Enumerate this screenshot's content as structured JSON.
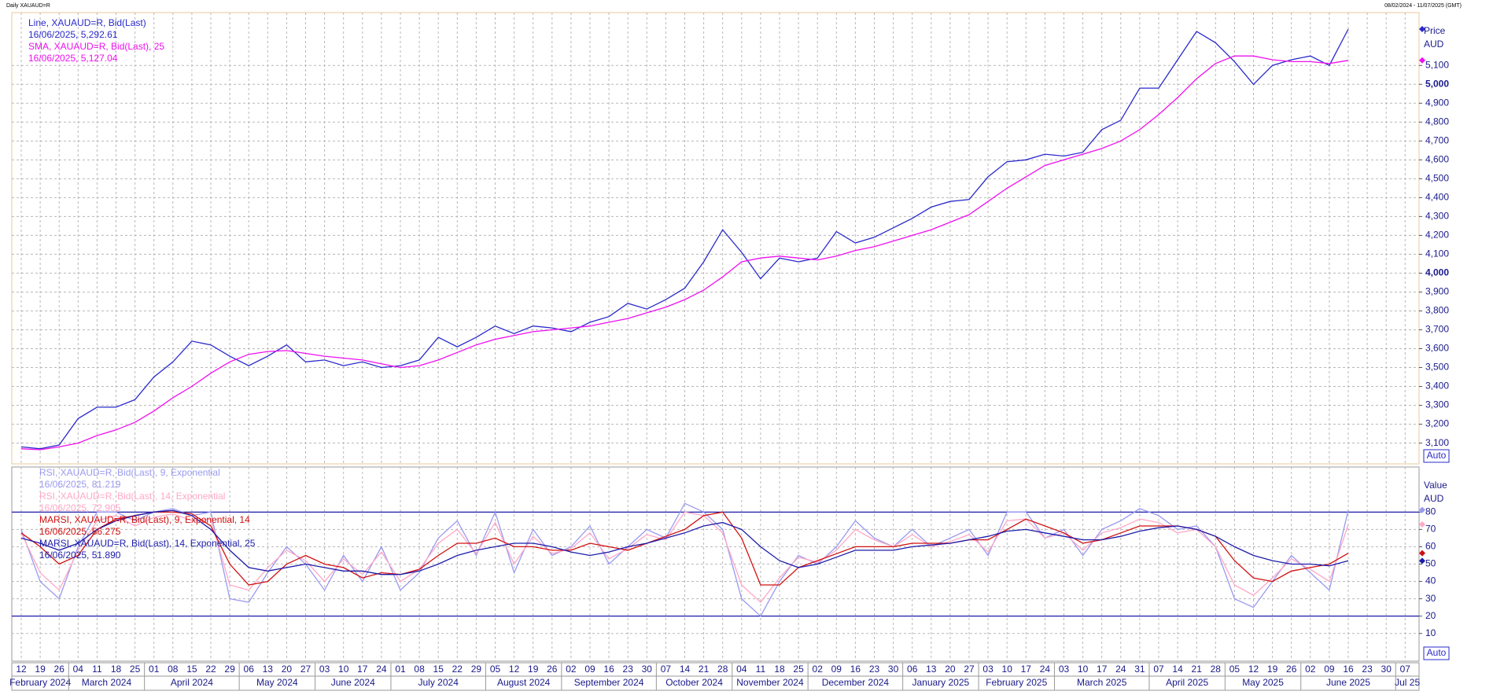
{
  "header": {
    "title": "Daily XAUAUD=R",
    "range": "08/02/2024 - 11/07/2025 (GMT)"
  },
  "chart_data": [
    {
      "type": "line",
      "ylabel": "Price",
      "yunit": "AUD",
      "button": "Auto",
      "grid": true,
      "ylim": [
        2990,
        5380
      ],
      "yticks": [
        {
          "value": 3100,
          "label": "3,100"
        },
        {
          "value": 3200,
          "label": "3,200"
        },
        {
          "value": 3300,
          "label": "3,300"
        },
        {
          "value": 3400,
          "label": "3,400"
        },
        {
          "value": 3500,
          "label": "3,500"
        },
        {
          "value": 3600,
          "label": "3,600"
        },
        {
          "value": 3700,
          "label": "3,700"
        },
        {
          "value": 3800,
          "label": "3,800"
        },
        {
          "value": 3900,
          "label": "3,900"
        },
        {
          "value": 4000,
          "label": "4,000"
        },
        {
          "value": 4100,
          "label": "4,100"
        },
        {
          "value": 4200,
          "label": "4,200"
        },
        {
          "value": 4300,
          "label": "4,300"
        },
        {
          "value": 4400,
          "label": "4,400"
        },
        {
          "value": 4500,
          "label": "4,500"
        },
        {
          "value": 4600,
          "label": "4,600"
        },
        {
          "value": 4700,
          "label": "4,700"
        },
        {
          "value": 4800,
          "label": "4,800"
        },
        {
          "value": 4900,
          "label": "4,900"
        },
        {
          "value": 5000,
          "label": "5,000"
        },
        {
          "value": 5100,
          "label": "5,100"
        }
      ],
      "series": [
        {
          "name": "Line, XAUAUD=R, Bid(Last)",
          "last_label": "16/06/2025, 5,292.61",
          "color": "#2a2acc",
          "values": [
            3080,
            3070,
            3090,
            3230,
            3290,
            3290,
            3330,
            3450,
            3530,
            3640,
            3620,
            3560,
            3510,
            3560,
            3620,
            3530,
            3540,
            3510,
            3530,
            3500,
            3510,
            3540,
            3660,
            3610,
            3660,
            3720,
            3680,
            3720,
            3710,
            3690,
            3740,
            3770,
            3840,
            3810,
            3860,
            3920,
            4060,
            4230,
            4110,
            3970,
            4080,
            4060,
            4080,
            4220,
            4160,
            4190,
            4240,
            4290,
            4350,
            4380,
            4390,
            4510,
            4590,
            4600,
            4630,
            4620,
            4640,
            4760,
            4810,
            4980,
            4980,
            5130,
            5280,
            5220,
            5120,
            5000,
            5100,
            5130,
            5150,
            5100,
            5292.61,
            null,
            null,
            null
          ]
        },
        {
          "name": "SMA, XAUAUD=R, Bid(Last),  25",
          "last_label": "16/06/2025, 5,127.04",
          "color": "#ee10ee",
          "values": [
            3070,
            3065,
            3080,
            3100,
            3140,
            3170,
            3210,
            3270,
            3340,
            3400,
            3470,
            3530,
            3570,
            3585,
            3590,
            3575,
            3560,
            3550,
            3540,
            3520,
            3500,
            3510,
            3540,
            3580,
            3620,
            3650,
            3670,
            3690,
            3700,
            3710,
            3720,
            3740,
            3760,
            3790,
            3820,
            3860,
            3910,
            3980,
            4060,
            4080,
            4090,
            4080,
            4070,
            4090,
            4120,
            4140,
            4170,
            4200,
            4230,
            4270,
            4310,
            4380,
            4450,
            4510,
            4570,
            4600,
            4630,
            4660,
            4700,
            4760,
            4840,
            4930,
            5030,
            5110,
            5150,
            5150,
            5130,
            5120,
            5120,
            5110,
            5127.04,
            null,
            null,
            null
          ]
        }
      ]
    },
    {
      "type": "line",
      "ylabel": "Value",
      "yunit": "AUD",
      "button": "Auto",
      "grid": true,
      "ylim": [
        -6,
        106
      ],
      "yticks": [
        10,
        20,
        30,
        40,
        50,
        60,
        70,
        80
      ],
      "levels": [
        20,
        80
      ],
      "categories": [
        "12",
        "19",
        "26",
        "04",
        "11",
        "18",
        "25",
        "01",
        "08",
        "15",
        "22",
        "29",
        "06",
        "13",
        "20",
        "27",
        "03",
        "10",
        "17",
        "24",
        "01",
        "08",
        "15",
        "22",
        "29",
        "05",
        "12",
        "19",
        "26",
        "02",
        "09",
        "16",
        "23",
        "30",
        "07",
        "14",
        "21",
        "28",
        "04",
        "11",
        "18",
        "25",
        "02",
        "09",
        "16",
        "23",
        "30",
        "06",
        "13",
        "20",
        "27",
        "03",
        "10",
        "17",
        "24",
        "03",
        "10",
        "17",
        "24",
        "31",
        "07",
        "14",
        "21",
        "28",
        "05",
        "12",
        "19",
        "26",
        "02",
        "09",
        "16",
        "23",
        "30",
        "07"
      ],
      "months": [
        "February 2024",
        "March 2024",
        "April 2024",
        "May 2024",
        "June 2024",
        "July 2024",
        "August 2024",
        "September 2024",
        "October 2024",
        "November 2024",
        "December 2024",
        "January 2025",
        "February 2025",
        "March 2025",
        "April 2025",
        "May 2025",
        "June 2025",
        "Jul 25"
      ],
      "series": [
        {
          "name": "RSI, XAUAUD=R, Bid(Last),  9, Exponential",
          "last_label": "16/06/2025, 81.219",
          "color": "#9a9af0",
          "values": [
            70,
            40,
            30,
            60,
            80,
            80,
            75,
            80,
            82,
            78,
            80,
            30,
            28,
            45,
            60,
            50,
            35,
            55,
            40,
            60,
            35,
            45,
            65,
            75,
            55,
            80,
            45,
            70,
            55,
            60,
            72,
            50,
            60,
            70,
            65,
            85,
            80,
            70,
            30,
            20,
            40,
            55,
            50,
            60,
            75,
            65,
            60,
            70,
            60,
            65,
            70,
            55,
            80,
            80,
            65,
            70,
            55,
            70,
            75,
            82,
            78,
            70,
            72,
            60,
            30,
            25,
            40,
            55,
            45,
            35,
            81.219,
            null,
            null,
            null
          ]
        },
        {
          "name": "RSI, XAUAUD=R, Bid(Last),  14, Exponential",
          "last_label": "16/06/2025, 72.905",
          "color": "#ffa8c8",
          "values": [
            68,
            45,
            35,
            58,
            75,
            78,
            72,
            77,
            79,
            75,
            76,
            38,
            35,
            48,
            58,
            52,
            40,
            53,
            44,
            57,
            40,
            47,
            62,
            70,
            56,
            74,
            50,
            66,
            56,
            59,
            68,
            53,
            59,
            67,
            64,
            80,
            78,
            68,
            38,
            28,
            42,
            54,
            51,
            58,
            70,
            64,
            60,
            67,
            60,
            63,
            67,
            57,
            75,
            76,
            65,
            68,
            58,
            68,
            71,
            76,
            74,
            68,
            70,
            60,
            38,
            32,
            42,
            53,
            47,
            40,
            72.905,
            null,
            null,
            null
          ]
        },
        {
          "name": "MARSI, XAUAUD=R, Bid(Last),  9, Exponential, 14",
          "last_label": "16/06/2025, 56.275",
          "color": "#d01010",
          "values": [
            68,
            60,
            50,
            55,
            70,
            76,
            78,
            80,
            80,
            79,
            72,
            50,
            38,
            40,
            50,
            55,
            50,
            48,
            42,
            45,
            44,
            47,
            55,
            62,
            62,
            65,
            60,
            60,
            58,
            58,
            62,
            60,
            58,
            62,
            66,
            70,
            78,
            80,
            65,
            38,
            38,
            48,
            52,
            56,
            60,
            60,
            60,
            62,
            62,
            62,
            64,
            64,
            70,
            76,
            72,
            68,
            62,
            64,
            68,
            72,
            72,
            72,
            70,
            66,
            52,
            42,
            40,
            46,
            48,
            50,
            56.275,
            null,
            null,
            null
          ]
        },
        {
          "name": "MARSI, XAUAUD=R, Bid(Last),  14, Exponential, 25",
          "last_label": "16/06/2025, 51.890",
          "color": "#1c1caa",
          "values": [
            65,
            62,
            58,
            62,
            70,
            75,
            78,
            80,
            81,
            78,
            70,
            58,
            48,
            46,
            48,
            50,
            48,
            46,
            46,
            44,
            44,
            46,
            50,
            55,
            58,
            60,
            62,
            62,
            60,
            57,
            55,
            57,
            60,
            62,
            65,
            68,
            72,
            74,
            70,
            60,
            52,
            48,
            50,
            54,
            58,
            58,
            58,
            60,
            61,
            62,
            64,
            66,
            69,
            70,
            68,
            66,
            64,
            64,
            66,
            69,
            71,
            72,
            70,
            66,
            60,
            55,
            52,
            50,
            50,
            49,
            51.89,
            null,
            null,
            null
          ]
        }
      ]
    }
  ]
}
